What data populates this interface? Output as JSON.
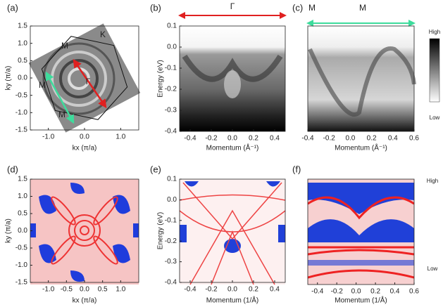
{
  "chart_data": [
    {
      "type": "heatmap",
      "label": "(a)",
      "xlabel": "kx (π/a)",
      "ylabel": "ky (π/a)",
      "xlim": [
        -1.5,
        1.5
      ],
      "ylim": [
        -1.5,
        1.5
      ],
      "xticks": [
        {
          "value": -1,
          "label": "-1.0"
        },
        {
          "value": 0,
          "label": "0.0"
        },
        {
          "value": 1,
          "label": "1.0"
        }
      ],
      "yticks": [
        -1.5,
        {
          "value": -1,
          "label": "-1.0"
        },
        -0.5,
        {
          "value": 0,
          "label": "0.0"
        },
        0.5,
        {
          "value": 1,
          "label": "1.0"
        },
        1.5
      ],
      "annotations": [
        "K",
        "M",
        "M",
        "M",
        "Γ"
      ]
    },
    {
      "type": "heatmap",
      "label": "(b)",
      "title": "Γ",
      "xlabel": "Momentum (Å⁻¹)",
      "ylabel": "Energy (eV)",
      "xlim": [
        -0.5,
        0.5
      ],
      "ylim": [
        -0.4,
        0.1
      ],
      "xticks": [
        -0.4,
        -0.2,
        {
          "value": 0,
          "label": "0.0"
        },
        0.2,
        0.4
      ],
      "yticks": [
        -0.4,
        -0.3,
        -0.2,
        -0.1,
        {
          "value": 0,
          "label": "0.0"
        },
        0.1
      ]
    },
    {
      "type": "heatmap",
      "label": "(c)",
      "xlabel": "Momentum (Å⁻¹)",
      "xlim": [
        -0.4,
        0.6
      ],
      "ylim": [
        -0.4,
        0.1
      ],
      "xticks": [
        -0.4,
        -0.2,
        {
          "value": 0,
          "label": "0.0"
        },
        0.2,
        0.4,
        0.6
      ],
      "annotations": [
        "M",
        "M"
      ],
      "colorbar_labels": [
        "High",
        "Low"
      ]
    },
    {
      "type": "heatmap",
      "label": "(d)",
      "xlabel": "kx (π/a)",
      "ylabel": "ky (π/a)",
      "xlim": [
        -1.5,
        1.5
      ],
      "ylim": [
        -1.5,
        1.5
      ],
      "xticks": [
        {
          "value": -1,
          "label": "-1.0"
        },
        -0.5,
        {
          "value": 0,
          "label": "0.0"
        },
        0.5,
        {
          "value": 1,
          "label": "1.0"
        }
      ],
      "yticks": [
        -1.5,
        {
          "value": -1,
          "label": "-1.0"
        },
        -0.5,
        {
          "value": 0,
          "label": "0.0"
        },
        0.5,
        {
          "value": 1,
          "label": "1.0"
        },
        1.5
      ]
    },
    {
      "type": "heatmap",
      "label": "(e)",
      "xlabel": "Momentum (1/Å)",
      "ylabel": "Energy (eV)",
      "xlim": [
        -0.5,
        0.5
      ],
      "ylim": [
        -0.4,
        0.1
      ],
      "xticks": [
        -0.4,
        -0.2,
        {
          "value": 0,
          "label": "0.0"
        },
        0.2,
        0.4
      ],
      "yticks": [
        -0.4,
        -0.3,
        -0.2,
        -0.1,
        {
          "value": 0,
          "label": "0.0"
        },
        0.1
      ]
    },
    {
      "type": "heatmap",
      "label": "(f)",
      "xlabel": "Momentum (1/Å)",
      "xlim": [
        -0.5,
        0.6
      ],
      "ylim": [
        -0.4,
        0.1
      ],
      "xticks": [
        -0.4,
        -0.2,
        {
          "value": 0,
          "label": "0.0"
        },
        0.2,
        0.4,
        0.6
      ],
      "colorbar_labels": [
        "High",
        "Low"
      ]
    }
  ]
}
